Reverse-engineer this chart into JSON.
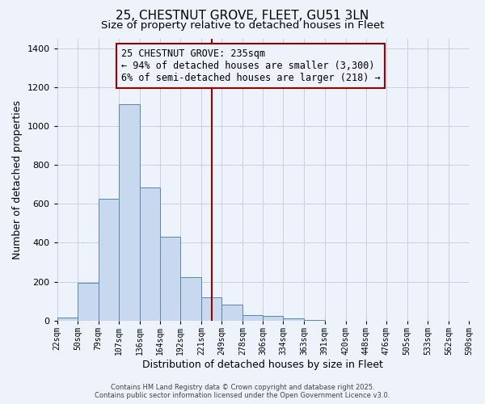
{
  "title": "25, CHESTNUT GROVE, FLEET, GU51 3LN",
  "subtitle": "Size of property relative to detached houses in Fleet",
  "xlabel": "Distribution of detached houses by size in Fleet",
  "ylabel": "Number of detached properties",
  "bar_color": "#c8d8ee",
  "bar_edge_color": "#5588aa",
  "background_color": "#eef2fa",
  "grid_color": "#c8d0e0",
  "bin_edges": [
    22,
    50,
    79,
    107,
    136,
    164,
    192,
    221,
    249,
    278,
    306,
    334,
    363,
    391,
    420,
    448,
    476,
    505,
    533,
    562,
    590
  ],
  "bin_labels": [
    "22sqm",
    "50sqm",
    "79sqm",
    "107sqm",
    "136sqm",
    "164sqm",
    "192sqm",
    "221sqm",
    "249sqm",
    "278sqm",
    "306sqm",
    "334sqm",
    "363sqm",
    "391sqm",
    "420sqm",
    "448sqm",
    "476sqm",
    "505sqm",
    "533sqm",
    "562sqm",
    "590sqm"
  ],
  "counts": [
    15,
    195,
    625,
    1110,
    685,
    430,
    225,
    120,
    82,
    30,
    25,
    10,
    5,
    0,
    0,
    0,
    0,
    0,
    0,
    0
  ],
  "vline_x": 235,
  "vline_color": "#990000",
  "annotation_line1": "25 CHESTNUT GROVE: 235sqm",
  "annotation_line2": "← 94% of detached houses are smaller (3,300)",
  "annotation_line3": "6% of semi-detached houses are larger (218) →",
  "annotation_box_edge": "#990000",
  "footer_line1": "Contains HM Land Registry data © Crown copyright and database right 2025.",
  "footer_line2": "Contains public sector information licensed under the Open Government Licence v3.0.",
  "ylim": [
    0,
    1450
  ],
  "yticks": [
    0,
    200,
    400,
    600,
    800,
    1000,
    1200,
    1400
  ],
  "title_fontsize": 11,
  "subtitle_fontsize": 9.5,
  "annotation_fontsize": 8.5
}
